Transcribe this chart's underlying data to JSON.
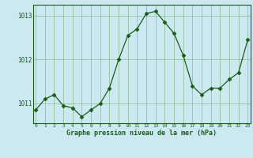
{
  "x": [
    0,
    1,
    2,
    3,
    4,
    5,
    6,
    7,
    8,
    9,
    10,
    11,
    12,
    13,
    14,
    15,
    16,
    17,
    18,
    19,
    20,
    21,
    22,
    23
  ],
  "y": [
    1010.85,
    1011.1,
    1011.2,
    1010.95,
    1010.9,
    1010.7,
    1010.85,
    1011.0,
    1011.35,
    1012.0,
    1012.55,
    1012.7,
    1013.05,
    1013.1,
    1012.85,
    1012.6,
    1012.1,
    1011.4,
    1011.2,
    1011.35,
    1011.35,
    1011.55,
    1011.7,
    1012.45
  ],
  "line_color": "#1a5c1a",
  "marker": "D",
  "marker_size": 2.5,
  "bg_color": "#cce8f0",
  "grid_color": "#88bb88",
  "axis_label_color": "#1a5c1a",
  "tick_color": "#1a5c1a",
  "ylabel_ticks": [
    1011,
    1012,
    1013
  ],
  "xlabel_ticks": [
    0,
    1,
    2,
    3,
    4,
    5,
    6,
    7,
    8,
    9,
    10,
    11,
    12,
    13,
    14,
    15,
    16,
    17,
    18,
    19,
    20,
    21,
    22,
    23
  ],
  "xlabel": "Graphe pression niveau de la mer (hPa)",
  "ylim": [
    1010.55,
    1013.25
  ],
  "xlim": [
    -0.3,
    23.3
  ]
}
